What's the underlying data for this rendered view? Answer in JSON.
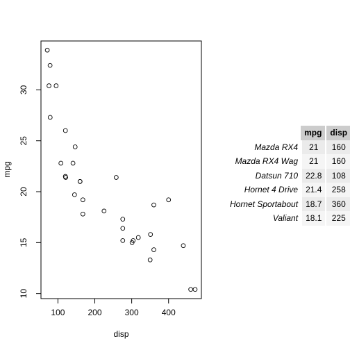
{
  "chart_data": [
    {
      "type": "scatter",
      "title": "",
      "xlabel": "disp",
      "ylabel": "mpg",
      "xlim": [
        54,
        489
      ],
      "ylim": [
        9.5,
        34.8
      ],
      "xticks": [
        100,
        200,
        300,
        400
      ],
      "yticks": [
        10,
        15,
        20,
        25,
        30
      ],
      "grid": false,
      "marker": "open-circle",
      "points": [
        {
          "x": 160,
          "y": 21.0
        },
        {
          "x": 160,
          "y": 21.0
        },
        {
          "x": 108,
          "y": 22.8
        },
        {
          "x": 258,
          "y": 21.4
        },
        {
          "x": 360,
          "y": 18.7
        },
        {
          "x": 225,
          "y": 18.1
        },
        {
          "x": 360,
          "y": 14.3
        },
        {
          "x": 146.7,
          "y": 24.4
        },
        {
          "x": 140.8,
          "y": 22.8
        },
        {
          "x": 167.6,
          "y": 19.2
        },
        {
          "x": 167.6,
          "y": 17.8
        },
        {
          "x": 275.8,
          "y": 16.4
        },
        {
          "x": 275.8,
          "y": 17.3
        },
        {
          "x": 275.8,
          "y": 15.2
        },
        {
          "x": 472,
          "y": 10.4
        },
        {
          "x": 460,
          "y": 10.4
        },
        {
          "x": 440,
          "y": 14.7
        },
        {
          "x": 78.7,
          "y": 32.4
        },
        {
          "x": 75.7,
          "y": 30.4
        },
        {
          "x": 71.1,
          "y": 33.9
        },
        {
          "x": 120.1,
          "y": 21.5
        },
        {
          "x": 318,
          "y": 15.5
        },
        {
          "x": 304,
          "y": 15.2
        },
        {
          "x": 350,
          "y": 13.3
        },
        {
          "x": 400,
          "y": 19.2
        },
        {
          "x": 79,
          "y": 27.3
        },
        {
          "x": 120.3,
          "y": 26.0
        },
        {
          "x": 95.1,
          "y": 30.4
        },
        {
          "x": 351,
          "y": 15.8
        },
        {
          "x": 145,
          "y": 19.7
        },
        {
          "x": 301,
          "y": 15.0
        },
        {
          "x": 121,
          "y": 21.4
        }
      ]
    },
    {
      "type": "table",
      "columns": [
        "mpg",
        "disp"
      ],
      "rows": [
        {
          "name": "Mazda RX4",
          "values": [
            "21",
            "160"
          ]
        },
        {
          "name": "Mazda RX4 Wag",
          "values": [
            "21",
            "160"
          ]
        },
        {
          "name": "Datsun 710",
          "values": [
            "22.8",
            "108"
          ]
        },
        {
          "name": "Hornet 4 Drive",
          "values": [
            "21.4",
            "258"
          ]
        },
        {
          "name": "Hornet Sportabout",
          "values": [
            "18.7",
            "360"
          ]
        },
        {
          "name": "Valiant",
          "values": [
            "18.1",
            "225"
          ]
        }
      ],
      "colors": {
        "header": "#cccccc",
        "row_odd": "#ebebeb",
        "row_even": "#f5f5f5"
      }
    }
  ]
}
